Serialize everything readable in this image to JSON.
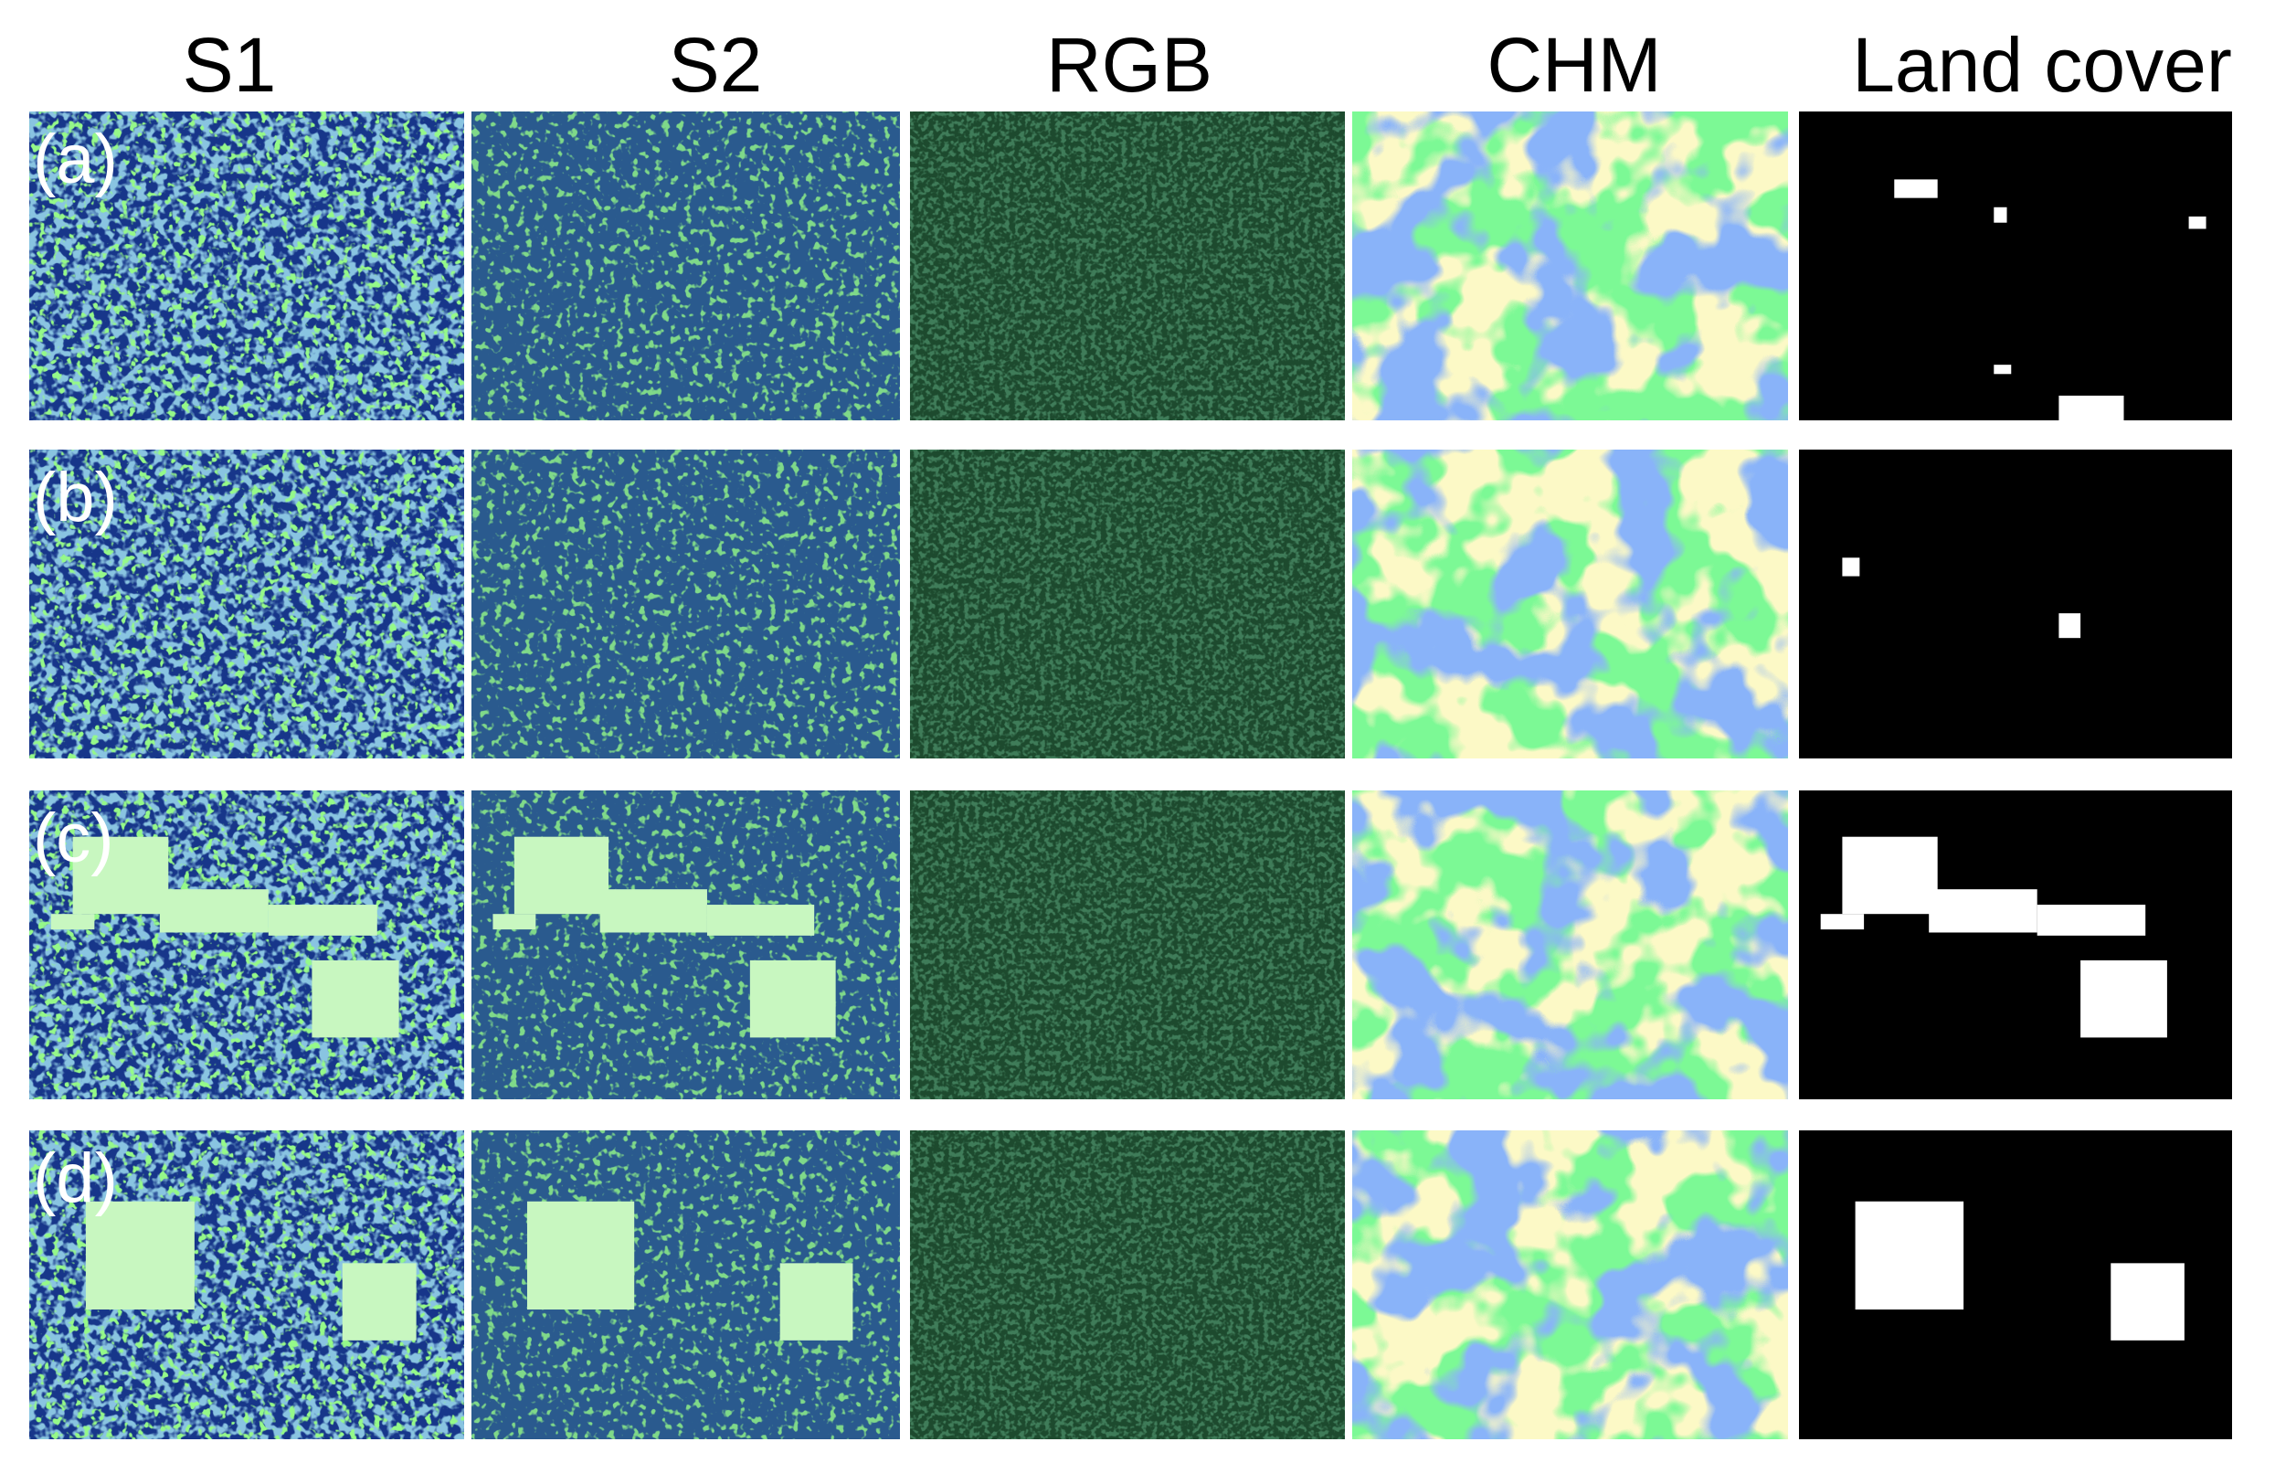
{
  "columns": [
    "S1",
    "S2",
    "RGB",
    "CHM",
    "Land cover"
  ],
  "rows": [
    "(a)",
    "(b)",
    "(c)",
    "(d)"
  ]
}
